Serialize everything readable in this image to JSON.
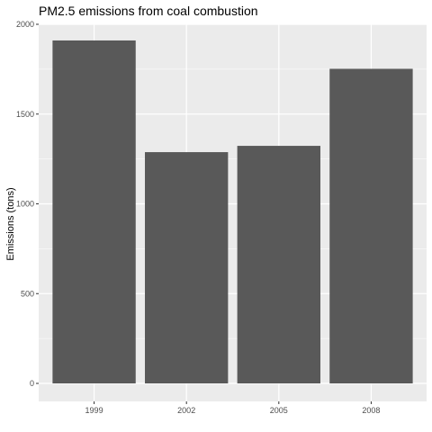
{
  "chart_data": {
    "type": "bar",
    "title": "PM2.5 emissions from coal combustion",
    "xlabel": "",
    "ylabel": "Emissions (tons)",
    "categories": [
      "1999",
      "2002",
      "2005",
      "2008"
    ],
    "values": [
      1910,
      1288,
      1323,
      1752
    ],
    "ylim": [
      0,
      2000
    ],
    "yticks": [
      0,
      500,
      1000,
      1500,
      2000
    ],
    "grid": true,
    "colors": {
      "panel": "#ebebeb",
      "grid_major": "#ffffff",
      "bar": "#595959"
    }
  }
}
